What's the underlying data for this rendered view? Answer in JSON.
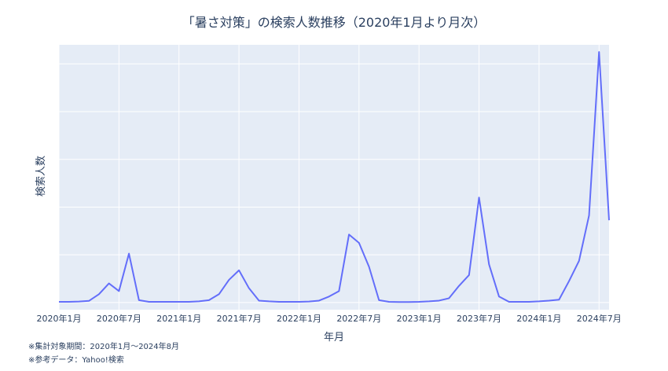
{
  "chart_data": {
    "type": "line",
    "title": "「暑さ対策」の検索人数推移（2020年1月より月次）",
    "xlabel": "年月",
    "ylabel": "検索人数",
    "x_tick_labels": [
      "2020年1月",
      "2020年7月",
      "2021年1月",
      "2021年7月",
      "2022年1月",
      "2022年7月",
      "2023年1月",
      "2023年7月",
      "2024年1月",
      "2024年7月"
    ],
    "ylim": [
      -3,
      108
    ],
    "y_gridlines": [
      0,
      20,
      40,
      60,
      80,
      100
    ],
    "grid": true,
    "line_color": "#636efa",
    "plot_background": "#e5ecf6",
    "x": [
      "2020-01",
      "2020-02",
      "2020-03",
      "2020-04",
      "2020-05",
      "2020-06",
      "2020-07",
      "2020-08",
      "2020-09",
      "2020-10",
      "2020-11",
      "2020-12",
      "2021-01",
      "2021-02",
      "2021-03",
      "2021-04",
      "2021-05",
      "2021-06",
      "2021-07",
      "2021-08",
      "2021-09",
      "2021-10",
      "2021-11",
      "2021-12",
      "2022-01",
      "2022-02",
      "2022-03",
      "2022-04",
      "2022-05",
      "2022-06",
      "2022-07",
      "2022-08",
      "2022-09",
      "2022-10",
      "2022-11",
      "2022-12",
      "2023-01",
      "2023-02",
      "2023-03",
      "2023-04",
      "2023-05",
      "2023-06",
      "2023-07",
      "2023-08",
      "2023-09",
      "2023-10",
      "2023-11",
      "2023-12",
      "2024-01",
      "2024-02",
      "2024-03",
      "2024-04",
      "2024-05",
      "2024-06",
      "2024-07",
      "2024-08"
    ],
    "values": [
      0.3,
      0.3,
      0.4,
      0.7,
      3.5,
      8.0,
      4.8,
      20.5,
      1.0,
      0.3,
      0.3,
      0.3,
      0.3,
      0.3,
      0.5,
      1.0,
      3.5,
      9.5,
      13.5,
      6.0,
      0.8,
      0.5,
      0.3,
      0.3,
      0.3,
      0.4,
      0.8,
      2.5,
      4.8,
      28.5,
      25.0,
      15.0,
      1.0,
      0.3,
      0.2,
      0.2,
      0.3,
      0.5,
      0.8,
      1.8,
      7.0,
      11.5,
      44.0,
      16.0,
      2.5,
      0.3,
      0.3,
      0.3,
      0.5,
      0.8,
      1.2,
      9.0,
      17.5,
      36.5,
      105.0,
      34.5
    ]
  },
  "footnotes": {
    "period": "※集計対象期間：2020年1月〜2024年8月",
    "source": "※参考データ：Yahoo!検索"
  }
}
